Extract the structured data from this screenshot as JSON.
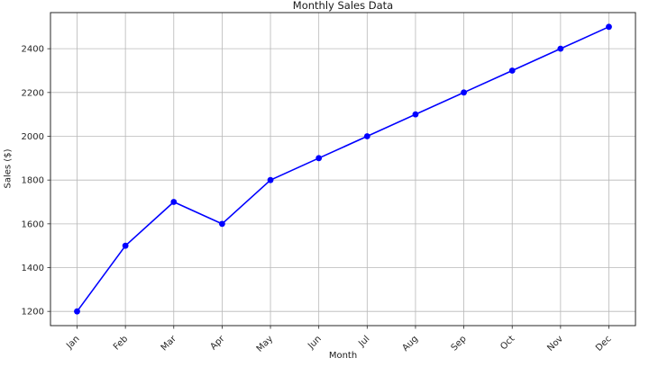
{
  "chart_data": {
    "type": "line",
    "title": "Monthly Sales Data",
    "xlabel": "Month",
    "ylabel": "Sales ($)",
    "categories": [
      "Jan",
      "Feb",
      "Mar",
      "Apr",
      "May",
      "Jun",
      "Jul",
      "Aug",
      "Sep",
      "Oct",
      "Nov",
      "Dec"
    ],
    "values": [
      1200,
      1500,
      1700,
      1600,
      1800,
      1900,
      2000,
      2100,
      2200,
      2300,
      2400,
      2500
    ],
    "yticks": [
      1200,
      1400,
      1600,
      1800,
      2000,
      2200,
      2400
    ],
    "ylim": [
      1135,
      2565
    ],
    "x_margin": 0.55,
    "grid": true,
    "legend": "none",
    "line_color": "#0000ff",
    "marker_color": "#0000ff",
    "grid_color": "#b8b8b8",
    "axis_color": "#262626",
    "tick_label_color": "#262626",
    "background_color": "#ffffff",
    "x_tick_rotation_deg": 45
  }
}
